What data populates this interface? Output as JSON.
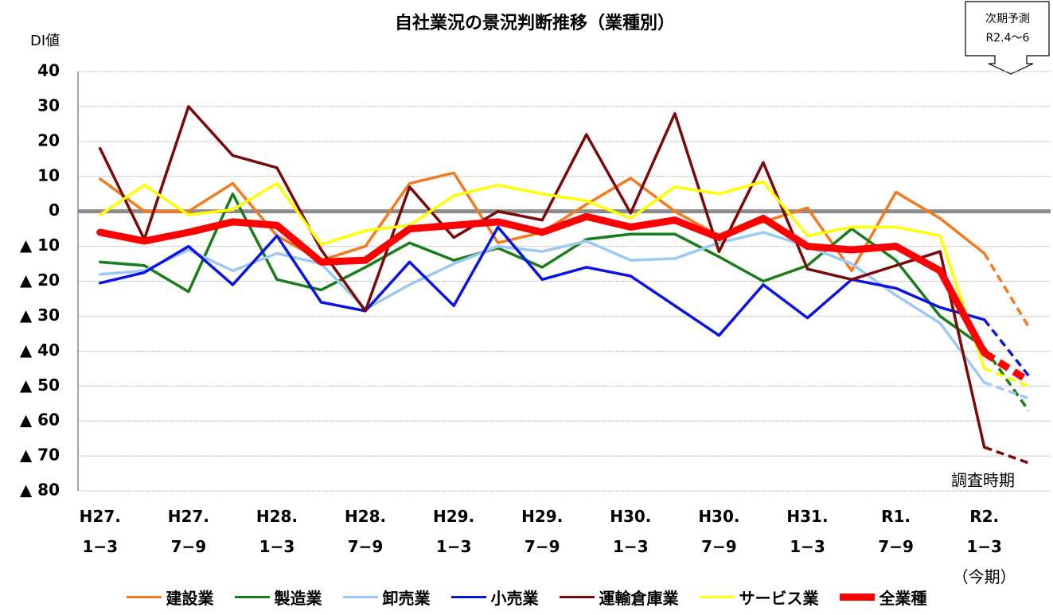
{
  "chart_data": {
    "type": "line",
    "title": "自社業況の景況判断推移（業種別）",
    "y_label": "DI値",
    "categories": [
      "H27.\n1−3",
      null,
      "H27.\n7−9",
      null,
      "H28.\n1−3",
      null,
      "H28.\n7−9",
      null,
      "H29.\n1−3",
      null,
      "H29.\n7−9",
      null,
      "H30.\n1−3",
      null,
      "H30.\n7−9",
      null,
      "H31.\n1−3",
      null,
      "R1.\n7−9",
      null,
      "R2.\n1−3",
      null
    ],
    "current_period_label": "（今期）",
    "survey_label": "調査時期",
    "forecast_box": [
      "次期予測",
      "R2.4～6"
    ],
    "dashed_last_segment": true,
    "ylim": [
      -80,
      40
    ],
    "yticks": [
      40,
      30,
      20,
      10,
      0,
      {
        "value": -10,
        "label": "▲ 10"
      },
      {
        "value": -20,
        "label": "▲ 20"
      },
      {
        "value": -30,
        "label": "▲ 30"
      },
      {
        "value": -40,
        "label": "▲ 40"
      },
      {
        "value": -50,
        "label": "▲ 50"
      },
      {
        "value": -60,
        "label": "▲ 60"
      },
      {
        "value": -70,
        "label": "▲ 70"
      },
      {
        "value": -80,
        "label": "▲ 80"
      }
    ],
    "grid": true,
    "series": [
      {
        "name": "建設業",
        "color": "#f47a20",
        "width": 3.5,
        "values": [
          9.3,
          0,
          0,
          8,
          -7,
          -14,
          -10,
          8,
          11,
          -9,
          -6,
          2,
          9.5,
          0,
          -7,
          -3,
          1,
          -17,
          5.5,
          -2,
          -12,
          -33
        ]
      },
      {
        "name": "製造業",
        "color": "#1a7d1a",
        "width": 3.5,
        "values": [
          -14.5,
          -15.5,
          -23,
          5,
          -19.5,
          -22.5,
          -16,
          -9,
          -14,
          -10.5,
          -16,
          -8,
          -6.5,
          -6.5,
          -13,
          -20,
          -15.5,
          -5,
          -14,
          -30,
          -39,
          -57
        ]
      },
      {
        "name": "卸売業",
        "color": "#9dc8f2",
        "width": 3.5,
        "values": [
          -18,
          -17,
          -11,
          -17,
          -12,
          -15,
          -28,
          -21,
          -15,
          -10,
          -11.5,
          -8.5,
          -14,
          -13.5,
          -9,
          -6,
          -10,
          -15,
          -24,
          -32,
          -49,
          -53.5
        ]
      },
      {
        "name": "小売業",
        "color": "#0a14e6",
        "width": 3.5,
        "values": [
          -20.5,
          -17.5,
          -10,
          -21,
          -7,
          -26,
          -28.5,
          -14.5,
          -27,
          -4.5,
          -19.5,
          -16,
          -18.5,
          -27,
          -35.5,
          -21,
          -30.5,
          -19.5,
          -22,
          -27.5,
          -31,
          -47
        ]
      },
      {
        "name": "運輸倉庫業",
        "color": "#7a0a0a",
        "width": 3.5,
        "values": [
          18,
          -8,
          30,
          16,
          12.5,
          -11,
          -28.5,
          7,
          -7.5,
          0,
          -2.5,
          22,
          -0.5,
          28,
          -11.5,
          14,
          -16.5,
          -19.5,
          -15.5,
          -11.5,
          -67.5,
          -72
        ]
      },
      {
        "name": "サービス業",
        "color": "#ffff00",
        "width": 3.5,
        "values": [
          -1,
          7.5,
          -1,
          0.5,
          8,
          -9.5,
          -5.5,
          -4,
          4.5,
          7.5,
          5,
          3,
          -2,
          7,
          5,
          8.5,
          -7,
          -4.5,
          -4.5,
          -7,
          -45,
          -50
        ]
      },
      {
        "name": "全業種",
        "color": "#ff0000",
        "width": 9,
        "values": [
          -6,
          -8.5,
          -6,
          -3,
          -4,
          -14.5,
          -14,
          -5,
          -4,
          -3,
          -6,
          -1.5,
          -4.5,
          -2.5,
          -7.5,
          -2,
          -10,
          -11,
          -10,
          -17,
          -40.5,
          -48.5
        ]
      }
    ]
  }
}
